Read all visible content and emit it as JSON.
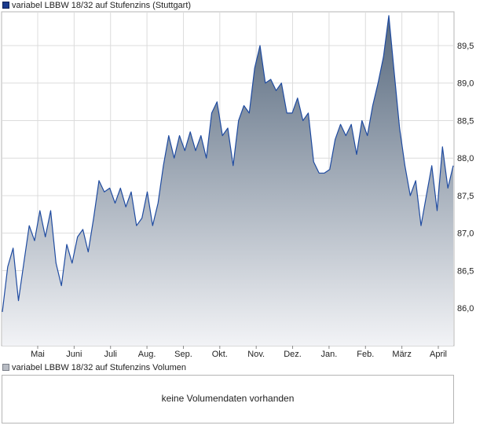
{
  "legend": {
    "price_label": "variabel LBBW 18/32 auf Stufenzins (Stuttgart)",
    "volume_label": "variabel LBBW 18/32 auf Stufenzins Volumen"
  },
  "volume_panel": {
    "message": "keine Volumendaten vorhanden"
  },
  "colors": {
    "line": "#1f4ba0",
    "area_top": "#56687d",
    "area_bottom": "#f2f3f6",
    "grid": "#dcdcdc",
    "frame": "#b5b5b5"
  },
  "chart_data": {
    "type": "area",
    "title": "variabel LBBW 18/32 auf Stufenzins (Stuttgart)",
    "x_axis": {
      "ticks": [
        "Mai",
        "Juni",
        "Juli",
        "Aug.",
        "Sep.",
        "Okt.",
        "Nov.",
        "Dez.",
        "Jan.",
        "Feb.",
        "März",
        "April"
      ]
    },
    "y_axis": {
      "ticks": [
        "86,0",
        "86,5",
        "87,0",
        "87,5",
        "88,0",
        "88,5",
        "89,0",
        "89,5"
      ],
      "position": "right",
      "ylim": [
        85.5,
        89.95
      ]
    },
    "grid": true,
    "series": [
      {
        "name": "variabel LBBW 18/32 auf Stufenzins (Stuttgart)",
        "values": [
          85.95,
          86.55,
          86.8,
          86.1,
          86.6,
          87.1,
          86.9,
          87.3,
          86.95,
          87.3,
          86.6,
          86.3,
          86.85,
          86.6,
          86.95,
          87.05,
          86.75,
          87.2,
          87.7,
          87.55,
          87.6,
          87.4,
          87.6,
          87.35,
          87.55,
          87.1,
          87.2,
          87.55,
          87.1,
          87.4,
          87.9,
          88.3,
          88.0,
          88.3,
          88.1,
          88.35,
          88.1,
          88.3,
          88.0,
          88.6,
          88.75,
          88.3,
          88.4,
          87.9,
          88.5,
          88.7,
          88.6,
          89.2,
          89.5,
          89.0,
          89.05,
          88.9,
          89.0,
          88.6,
          88.6,
          88.8,
          88.5,
          88.6,
          87.95,
          87.8,
          87.8,
          87.85,
          88.25,
          88.45,
          88.3,
          88.45,
          88.05,
          88.5,
          88.3,
          88.7,
          89.0,
          89.35,
          89.9,
          89.15,
          88.4,
          87.9,
          87.5,
          87.7,
          87.1,
          87.5,
          87.9,
          87.3,
          88.15,
          87.6,
          87.9
        ]
      }
    ]
  }
}
